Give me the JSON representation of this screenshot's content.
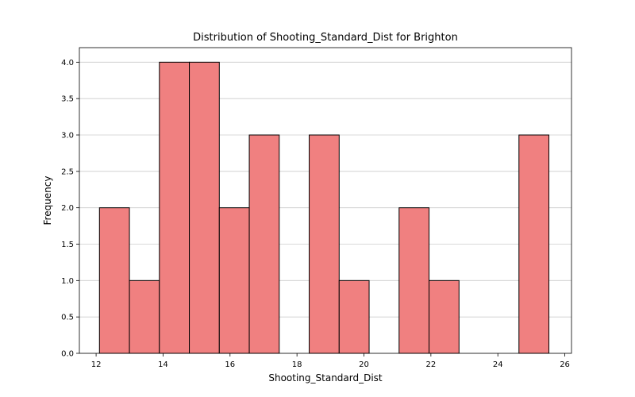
{
  "chart_data": {
    "type": "bar",
    "title": "Distribution of Shooting_Standard_Dist for Brighton",
    "xlabel": "Shooting_Standard_Dist",
    "ylabel": "Frequency",
    "xlim": [
      11.5,
      26.2
    ],
    "ylim": [
      0,
      4.2
    ],
    "x_ticks": [
      12,
      14,
      16,
      18,
      20,
      22,
      24,
      26
    ],
    "y_ticks": [
      0.0,
      0.5,
      1.0,
      1.5,
      2.0,
      2.5,
      3.0,
      3.5,
      4.0
    ],
    "x_tick_labels": [
      "12",
      "14",
      "16",
      "18",
      "20",
      "22",
      "24",
      "26"
    ],
    "y_tick_labels": [
      "0.0",
      "0.5",
      "1.0",
      "1.5",
      "2.0",
      "2.5",
      "3.0",
      "3.5",
      "4.0"
    ],
    "grid": "y",
    "bin_start": 12.1,
    "bin_width": 0.895,
    "counts": [
      2,
      1,
      4,
      4,
      2,
      3,
      0,
      3,
      1,
      0,
      2,
      1,
      0,
      0,
      3
    ],
    "bar_color": "#f08080",
    "edge_color": "#000000",
    "grid_color": "#cccccc"
  }
}
